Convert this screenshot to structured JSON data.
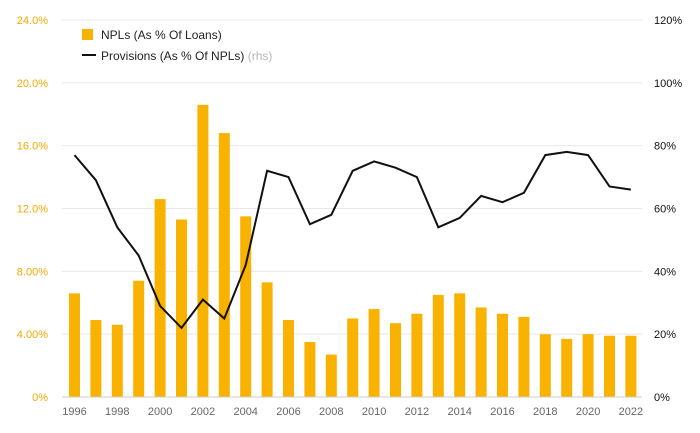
{
  "chart_data": {
    "type": "bar",
    "colors": {
      "bar": "#f9b200",
      "line": "#111111",
      "left_axis": "#f2a900",
      "right_axis": "#111111",
      "grid": "#e8e8e8"
    },
    "legend": {
      "placement": "top-left",
      "bar_label": "NPLs (As % Of Loans)",
      "line_label": "Provisions (As % Of NPLs)",
      "line_suffix": "(rhs)"
    },
    "x": [
      "1996",
      "1997",
      "1998",
      "1999",
      "2000",
      "2001",
      "2002",
      "2003",
      "2004",
      "2005",
      "2006",
      "2007",
      "2008",
      "2009",
      "2010",
      "2011",
      "2012",
      "2013",
      "2014",
      "2015",
      "2016",
      "2017",
      "2018",
      "2019",
      "2020",
      "2021",
      "2022"
    ],
    "x_tick_labels": [
      "1996",
      "1998",
      "2000",
      "2002",
      "2004",
      "2006",
      "2008",
      "2010",
      "2012",
      "2014",
      "2016",
      "2018",
      "2020",
      "2022"
    ],
    "left_axis": {
      "ylim": [
        0,
        24
      ],
      "ticks": [
        "0%",
        "4.00%",
        "8.00%",
        "12.0%",
        "16.0%",
        "20.0%",
        "24.0%"
      ]
    },
    "right_axis": {
      "ylim": [
        0,
        120
      ],
      "ticks": [
        "0%",
        "20%",
        "40%",
        "60%",
        "80%",
        "100%",
        "120%"
      ]
    },
    "grid": true,
    "series": [
      {
        "name": "NPLs (As % Of Loans)",
        "type": "bar",
        "axis": "left",
        "values": [
          6.6,
          4.9,
          4.6,
          7.4,
          12.6,
          11.3,
          18.6,
          16.8,
          11.5,
          7.3,
          4.9,
          3.5,
          2.7,
          5.0,
          5.6,
          4.7,
          5.3,
          6.5,
          6.6,
          5.7,
          5.3,
          5.1,
          4.0,
          3.7,
          4.0,
          3.9,
          3.9
        ]
      },
      {
        "name": "Provisions (As % Of NPLs)",
        "type": "line",
        "axis": "right",
        "values": [
          77,
          69,
          54,
          45,
          29,
          22,
          31,
          25,
          42,
          72,
          70,
          55,
          58,
          72,
          75,
          73,
          70,
          54,
          57,
          64,
          62,
          65,
          77,
          78,
          77,
          67,
          66
        ]
      }
    ]
  }
}
